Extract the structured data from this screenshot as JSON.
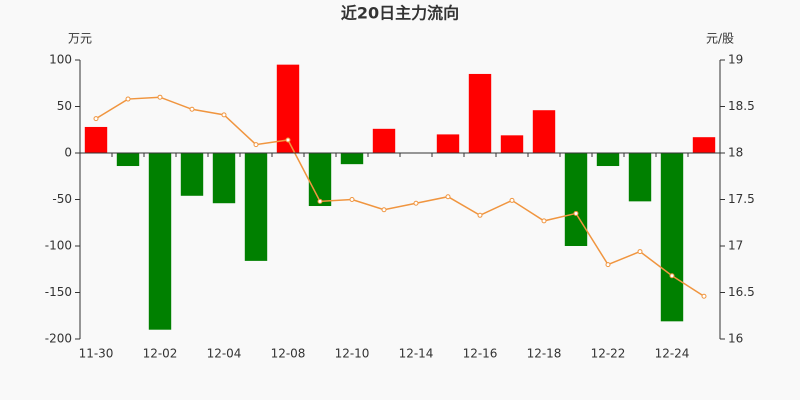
{
  "chart_data": {
    "type": "bar_line",
    "title": "近20日主力流向",
    "ylabel": "万元",
    "y2label": "元/股",
    "categories": [
      "11-30",
      null,
      "12-02",
      null,
      "12-04",
      null,
      "12-08",
      null,
      "12-10",
      null,
      "12-14",
      null,
      "12-16",
      null,
      "12-18",
      null,
      "12-22",
      null,
      "12-24",
      null
    ],
    "series": [
      {
        "type": "bar",
        "positive_color": "#ff0000",
        "negative_color": "#008000",
        "values": [
          28,
          -14,
          -190,
          -46,
          -54,
          -116,
          95,
          -57,
          -12,
          26,
          0,
          20,
          85,
          19,
          46,
          -100,
          -14,
          -52,
          -181,
          17
        ]
      },
      {
        "type": "line",
        "axis": "y2",
        "color": "#f0953f",
        "values": [
          18.37,
          18.58,
          18.6,
          18.47,
          18.41,
          18.09,
          18.14,
          17.48,
          17.5,
          17.39,
          17.46,
          17.53,
          17.33,
          17.49,
          17.27,
          17.35,
          16.8,
          16.94,
          16.68,
          16.46
        ]
      }
    ],
    "ylim": [
      -200,
      100
    ],
    "yticks": [
      100,
      50,
      0,
      -50,
      -100,
      -150,
      -200
    ],
    "y2lim": [
      16,
      19
    ],
    "y2ticks": [
      19,
      18.5,
      18,
      17.5,
      17,
      16.5,
      16
    ]
  }
}
